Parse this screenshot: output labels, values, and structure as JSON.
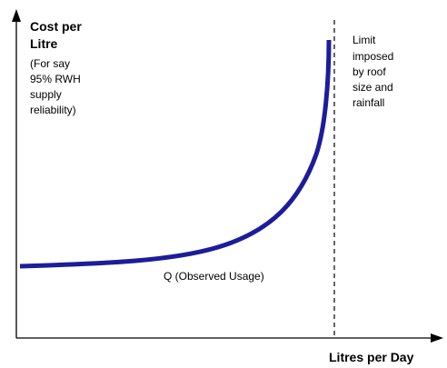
{
  "y_axis_label": {
    "title_lines": [
      "Cost per",
      "Litre"
    ],
    "note_lines": [
      "(For say",
      "95% RWH",
      "supply",
      "reliability)"
    ]
  },
  "limit_annotation": [
    "Limit",
    "imposed",
    "by roof",
    "size and",
    "rainfall"
  ],
  "curve_label": "Q (Observed Usage)",
  "x_axis_label": "Litres per Day"
}
